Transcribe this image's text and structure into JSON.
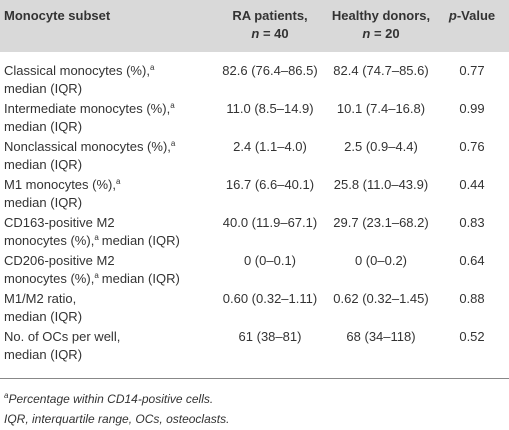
{
  "header": {
    "subset": "Monocyte subset",
    "ra": {
      "text": "RA patients,",
      "n": "n",
      "count": "= 40"
    },
    "hd": {
      "text": "Healthy donors,",
      "n": "n",
      "count": "= 20"
    },
    "p": {
      "italic": "p",
      "text": "-Value"
    }
  },
  "table": {
    "rows": [
      {
        "label": [
          {
            "text": "Classical monocytes (%),",
            "sup": "a"
          },
          {
            "text": "median (IQR)"
          }
        ],
        "ra": "82.6 (76.4–86.5)",
        "hd": "82.4 (74.7–85.6)",
        "p": "0.77"
      },
      {
        "label": [
          {
            "text": "Intermediate monocytes (%),",
            "sup": "a"
          },
          {
            "text": "median (IQR)"
          }
        ],
        "ra": "11.0 (8.5–14.9)",
        "hd": "10.1 (7.4–16.8)",
        "p": "0.99"
      },
      {
        "label": [
          {
            "text": "Nonclassical monocytes (%),",
            "sup": "a"
          },
          {
            "text": "median (IQR)"
          }
        ],
        "ra": "2.4 (1.1–4.0)",
        "hd": "2.5 (0.9–4.4)",
        "p": "0.76"
      },
      {
        "label": [
          {
            "text": "M1 monocytes (%),",
            "sup": "a"
          },
          {
            "text": "median (IQR)"
          }
        ],
        "ra": "16.7 (6.6–40.1)",
        "hd": "25.8 (11.0–43.9)",
        "p": "0.44"
      },
      {
        "label": [
          {
            "text": "CD163-positive M2"
          },
          {
            "text": "monocytes (%),",
            "sup": "a",
            "after": "median (IQR)"
          }
        ],
        "ra": "40.0 (11.9–67.1)",
        "hd": "29.7 (23.1–68.2)",
        "p": "0.83"
      },
      {
        "label": [
          {
            "text": "CD206-positive M2"
          },
          {
            "text": "monocytes (%),",
            "sup": "a",
            "after": "median (IQR)"
          }
        ],
        "ra": "0 (0–0.1)",
        "hd": "0 (0–0.2)",
        "p": "0.64"
      },
      {
        "label": [
          {
            "text": "M1/M2 ratio,"
          },
          {
            "text": "median (IQR)"
          }
        ],
        "ra": "0.60 (0.32–1.11)",
        "hd": "0.62 (0.32–1.45)",
        "p": "0.88"
      },
      {
        "label": [
          {
            "text": "No. of OCs per well,"
          },
          {
            "text": "median (IQR)"
          }
        ],
        "ra": "61 (38–81)",
        "hd": "68 (34–118)",
        "p": "0.52"
      }
    ]
  },
  "footnotes": [
    {
      "sup": "a",
      "text": "Percentage within CD14-positive cells."
    },
    {
      "text": "IQR, interquartile range, OCs, osteoclasts."
    }
  ]
}
